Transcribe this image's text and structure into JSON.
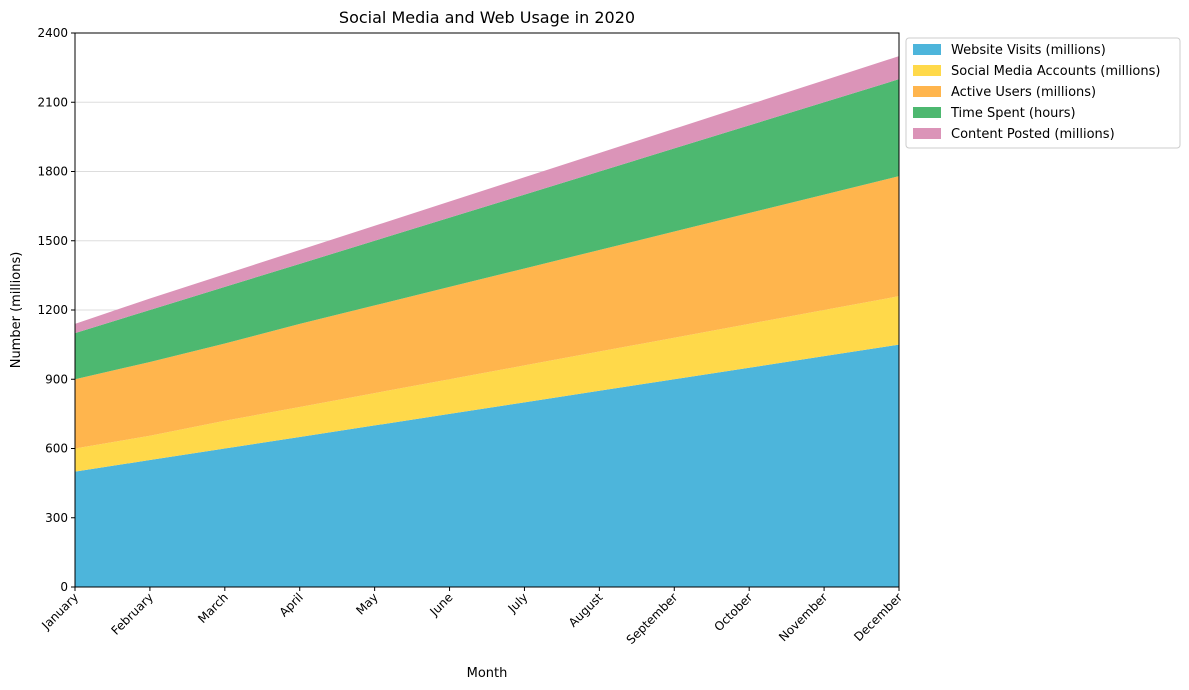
{
  "chart_data": {
    "type": "area",
    "stacked": true,
    "title": "Social Media and Web Usage in 2020",
    "xlabel": "Month",
    "ylabel": "Number (millions)",
    "categories": [
      "January",
      "February",
      "March",
      "April",
      "May",
      "June",
      "July",
      "August",
      "September",
      "October",
      "November",
      "December"
    ],
    "ylim": [
      0,
      2400
    ],
    "yticks": [
      0,
      300,
      600,
      900,
      1200,
      1500,
      1800,
      2100,
      2400
    ],
    "grid": "y",
    "legend_position": "outside-top-right",
    "series": [
      {
        "name": "Website Visits (millions)",
        "color": "#4db5db",
        "values": [
          500,
          550,
          600,
          650,
          700,
          750,
          800,
          850,
          900,
          950,
          1000,
          1050
        ]
      },
      {
        "name": "Social Media Accounts (millions)",
        "color": "#ffd94a",
        "values": [
          100,
          105,
          120,
          130,
          140,
          150,
          160,
          170,
          180,
          190,
          200,
          210
        ]
      },
      {
        "name": "Active Users (millions)",
        "color": "#ffb54d",
        "values": [
          300,
          320,
          335,
          360,
          380,
          400,
          420,
          440,
          460,
          480,
          500,
          520
        ]
      },
      {
        "name": "Time Spent (hours)",
        "color": "#4db870",
        "values": [
          200,
          225,
          245,
          260,
          280,
          300,
          320,
          340,
          360,
          380,
          400,
          420
        ]
      },
      {
        "name": "Content Posted (millions)",
        "color": "#db94b8",
        "values": [
          40,
          50,
          55,
          60,
          65,
          70,
          75,
          80,
          85,
          90,
          95,
          100
        ]
      }
    ]
  }
}
